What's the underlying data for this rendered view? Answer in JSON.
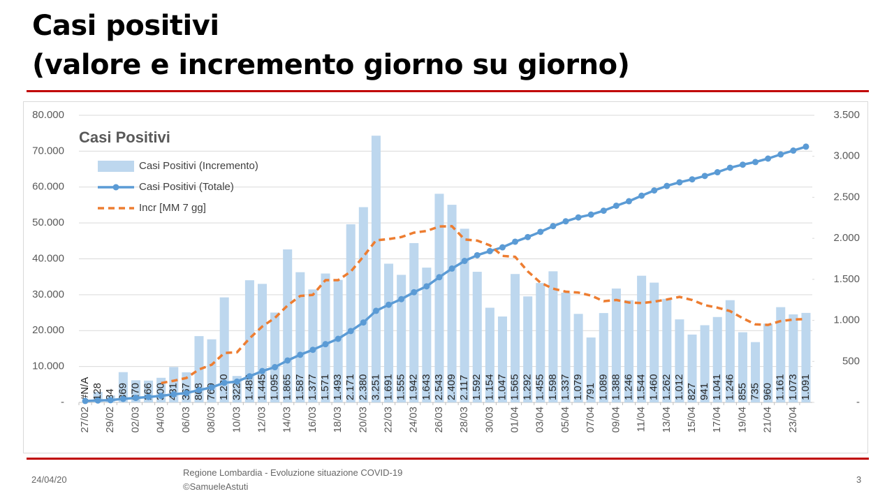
{
  "header": {
    "title_line1": "Casi positivi",
    "title_line2": "(valore e incremento giorno su giorno)"
  },
  "chart_data": {
    "type": "combo",
    "title": "Casi Positivi",
    "categories": [
      "27/02",
      null,
      "29/02",
      null,
      "02/03",
      null,
      "04/03",
      null,
      "06/03",
      null,
      "08/03",
      null,
      "10/03",
      null,
      "12/03",
      null,
      "14/03",
      null,
      "16/03",
      null,
      "18/03",
      null,
      "20/03",
      null,
      "22/03",
      null,
      "24/03",
      null,
      "26/03",
      null,
      "28/03",
      null,
      "30/03",
      null,
      "01/04",
      null,
      "03/04",
      null,
      "05/04",
      null,
      "07/04",
      null,
      "09/04",
      null,
      "11/04",
      null,
      "13/04",
      null,
      "15/04",
      null,
      "17/04",
      null,
      "19/04",
      null,
      "21/04",
      null,
      "23/04",
      null
    ],
    "series": [
      {
        "name": "Casi Positivi (Incremento)",
        "type": "bar",
        "axis": "y2",
        "color": "#bdd7ee",
        "values": [
          null,
          128,
          84,
          369,
          270,
          266,
          300,
          431,
          367,
          808,
          769,
          1280,
          322,
          1489,
          1445,
          1095,
          1865,
          1587,
          1377,
          1571,
          1493,
          2171,
          2380,
          3251,
          1691,
          1555,
          1942,
          1643,
          2543,
          2409,
          2117,
          1592,
          1154,
          1047,
          1565,
          1292,
          1455,
          1598,
          1337,
          1079,
          791,
          1089,
          1388,
          1246,
          1544,
          1460,
          1262,
          1012,
          827,
          941,
          1041,
          1246,
          855,
          735,
          960,
          1161,
          1073,
          1091
        ],
        "value_labels": [
          "#N/A",
          "128",
          "84",
          "369",
          "270",
          "266",
          "300",
          "431",
          "367",
          "808",
          "769",
          "1.280",
          "322",
          "1.489",
          "1.445",
          "1.095",
          "1.865",
          "1.587",
          "1.377",
          "1.571",
          "1.493",
          "2.171",
          "2.380",
          "3.251",
          "1.691",
          "1.555",
          "1.942",
          "1.643",
          "2.543",
          "2.409",
          "2.117",
          "1.592",
          "1.154",
          "1.047",
          "1.565",
          "1.292",
          "1.455",
          "1.598",
          "1.337",
          "1.079",
          "791",
          "1.089",
          "1.388",
          "1.246",
          "1.544",
          "1.460",
          "1.262",
          "1.012",
          "827",
          "941",
          "1.041",
          "1.246",
          "855",
          "735",
          "960",
          "1.161",
          "1.073",
          "1.091"
        ]
      },
      {
        "name": "Casi Positivi (Totale)",
        "type": "line",
        "axis": "y",
        "color": "#5b9bd5",
        "marker": "circle",
        "values": [
          403,
          531,
          615,
          984,
          1254,
          1520,
          1820,
          2251,
          2612,
          3420,
          4189,
          5469,
          5791,
          7280,
          8725,
          9820,
          11685,
          13272,
          14649,
          16220,
          17713,
          19884,
          22264,
          25515,
          27206,
          28761,
          30703,
          32346,
          34889,
          37298,
          39415,
          41007,
          42161,
          43208,
          44773,
          46065,
          47520,
          49118,
          50455,
          51534,
          52325,
          53414,
          54802,
          56048,
          57592,
          59052,
          60314,
          61326,
          62153,
          63094,
          64135,
          65381,
          66236,
          66971,
          67931,
          69092,
          70165,
          71256
        ]
      },
      {
        "name": "Incr [MM 7 gg]",
        "type": "line",
        "axis": "y2",
        "color": "#ed7d31",
        "line_style": "dashed",
        "values": [
          null,
          null,
          null,
          null,
          null,
          null,
          236,
          264,
          298,
          402,
          459,
          603,
          611,
          781,
          926,
          1030,
          1181,
          1298,
          1311,
          1490,
          1490,
          1594,
          1778,
          1976,
          1991,
          2016,
          2069,
          2090,
          2144,
          2148,
          1986,
          1972,
          1914,
          1786,
          1775,
          1597,
          1460,
          1386,
          1350,
          1339,
          1302,
          1234,
          1248,
          1218,
          1211,
          1228,
          1254,
          1286,
          1248,
          1185,
          1155,
          1113,
          1026,
          951,
          944,
          991,
          1010,
          1017
        ]
      }
    ],
    "ylim": [
      0,
      80000
    ],
    "yticks": [
      {
        "value": 0,
        "label": "-"
      },
      {
        "value": 10000,
        "label": "10.000"
      },
      {
        "value": 20000,
        "label": "20.000"
      },
      {
        "value": 30000,
        "label": "30.000"
      },
      {
        "value": 40000,
        "label": "40.000"
      },
      {
        "value": 50000,
        "label": "50.000"
      },
      {
        "value": 60000,
        "label": "60.000"
      },
      {
        "value": 70000,
        "label": "70.000"
      },
      {
        "value": 80000,
        "label": "80.000"
      }
    ],
    "y2lim": [
      0,
      3500
    ],
    "y2ticks": [
      {
        "value": 0,
        "label": "-"
      },
      500,
      {
        "value": 1000,
        "label": "1.000"
      },
      {
        "value": 1500,
        "label": "1.500"
      },
      {
        "value": 2000,
        "label": "2.000"
      },
      {
        "value": 2500,
        "label": "2.500"
      },
      {
        "value": 3000,
        "label": "3.000"
      },
      {
        "value": 3500,
        "label": "3.500"
      }
    ],
    "grid": true,
    "legend": "upper left"
  },
  "footer": {
    "date": "24/04/20",
    "source_line1": "Regione Lombardia - Evoluzione situazione COVID-19",
    "source_line2": "©SamueleAstuti",
    "page": "3"
  }
}
